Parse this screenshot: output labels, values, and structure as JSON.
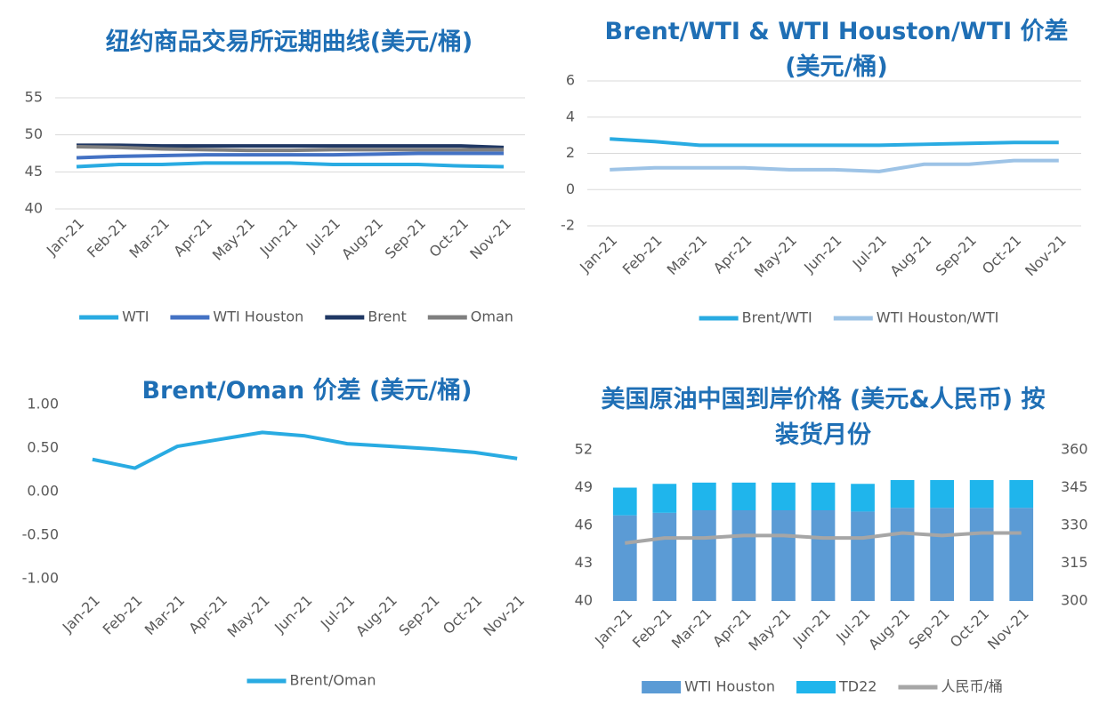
{
  "chart_data": [
    {
      "type": "line",
      "title": "纽约商品交易所远期曲线(美元/桶)",
      "categories": [
        "Jan-21",
        "Feb-21",
        "Mar-21",
        "Apr-21",
        "May-21",
        "Jun-21",
        "Jul-21",
        "Aug-21",
        "Sep-21",
        "Oct-21",
        "Nov-21"
      ],
      "series": [
        {
          "name": "WTI",
          "color": "#29abe2",
          "values": [
            45.7,
            46.0,
            46.0,
            46.2,
            46.2,
            46.2,
            46.0,
            46.0,
            46.0,
            45.8,
            45.7
          ]
        },
        {
          "name": "WTI Houston",
          "color": "#4472c4",
          "values": [
            46.9,
            47.1,
            47.2,
            47.3,
            47.3,
            47.3,
            47.3,
            47.4,
            47.5,
            47.5,
            47.5
          ]
        },
        {
          "name": "Brent",
          "color": "#203864",
          "values": [
            48.6,
            48.6,
            48.5,
            48.5,
            48.5,
            48.5,
            48.5,
            48.5,
            48.5,
            48.5,
            48.3
          ]
        },
        {
          "name": "Oman",
          "color": "#7f7f7f",
          "values": [
            48.4,
            48.3,
            48.1,
            48.0,
            47.9,
            47.9,
            48.0,
            48.0,
            48.0,
            48.0,
            48.0
          ]
        }
      ],
      "ylim": [
        40,
        55
      ],
      "yticks": [
        40,
        45,
        50,
        55
      ],
      "grid": true,
      "legend": "bottom"
    },
    {
      "type": "line",
      "title": "Brent/WTI & WTI Houston/WTI 价差 (美元/桶)",
      "categories": [
        "Jan-21",
        "Feb-21",
        "Mar-21",
        "Apr-21",
        "May-21",
        "Jun-21",
        "Jul-21",
        "Aug-21",
        "Sep-21",
        "Oct-21",
        "Nov-21"
      ],
      "series": [
        {
          "name": "Brent/WTI",
          "color": "#29abe2",
          "values": [
            2.8,
            2.65,
            2.45,
            2.45,
            2.45,
            2.45,
            2.45,
            2.5,
            2.55,
            2.6,
            2.6
          ]
        },
        {
          "name": "WTI Houston/WTI",
          "color": "#9dc3e6",
          "values": [
            1.1,
            1.2,
            1.2,
            1.2,
            1.1,
            1.1,
            1.0,
            1.4,
            1.4,
            1.6,
            1.6
          ]
        }
      ],
      "ylim": [
        -2,
        6
      ],
      "yticks": [
        -2,
        0,
        2,
        4,
        6
      ],
      "grid": true,
      "legend": "bottom"
    },
    {
      "type": "line",
      "title": "Brent/Oman 价差 (美元/桶)",
      "categories": [
        "Jan-21",
        "Feb-21",
        "Mar-21",
        "Apr-21",
        "May-21",
        "Jun-21",
        "Jul-21",
        "Aug-21",
        "Sep-21",
        "Oct-21",
        "Nov-21"
      ],
      "series": [
        {
          "name": "Brent/Oman",
          "color": "#29abe2",
          "values": [
            0.37,
            0.27,
            0.52,
            0.6,
            0.68,
            0.64,
            0.55,
            0.52,
            0.49,
            0.45,
            0.38
          ]
        }
      ],
      "ylim": [
        -1,
        1
      ],
      "yticks": [
        {
          "value": -1,
          "label": "-1.00"
        },
        {
          "value": -0.5,
          "label": "-0.50"
        },
        {
          "value": 0,
          "label": "0.00"
        },
        {
          "value": 0.5,
          "label": "0.50"
        },
        {
          "value": 1,
          "label": "1.00"
        }
      ],
      "grid": false,
      "legend": "bottom"
    },
    {
      "type": "bar",
      "title": "美国原油中国到岸价格 (美元&人民币) 按装货月份",
      "stacked": true,
      "categories": [
        "Jan-21",
        "Feb-21",
        "Mar-21",
        "Apr-21",
        "May-21",
        "Jun-21",
        "Jul-21",
        "Aug-21",
        "Sep-21",
        "Oct-21",
        "Nov-21"
      ],
      "series": [
        {
          "name": "WTI Houston",
          "color": "#5b9bd5",
          "values": [
            46.8,
            47.0,
            47.2,
            47.2,
            47.2,
            47.2,
            47.1,
            47.4,
            47.4,
            47.4,
            47.4
          ]
        },
        {
          "name": "TD22",
          "color": "#1fb5ec",
          "values": [
            2.2,
            2.3,
            2.2,
            2.2,
            2.2,
            2.2,
            2.2,
            2.2,
            2.2,
            2.2,
            2.2
          ]
        },
        {
          "name": "人民币/桶",
          "color": "#a6a6a6",
          "type": "line",
          "axis": "y2",
          "values": [
            323,
            325,
            325,
            326,
            326,
            325,
            325,
            327,
            326,
            327,
            327
          ]
        }
      ],
      "ylim": [
        40,
        52
      ],
      "yticks": [
        40,
        43,
        46,
        49,
        52
      ],
      "y2lim": [
        300,
        360
      ],
      "y2ticks": [
        300,
        315,
        330,
        345,
        360
      ],
      "grid": false,
      "legend": "bottom"
    }
  ]
}
